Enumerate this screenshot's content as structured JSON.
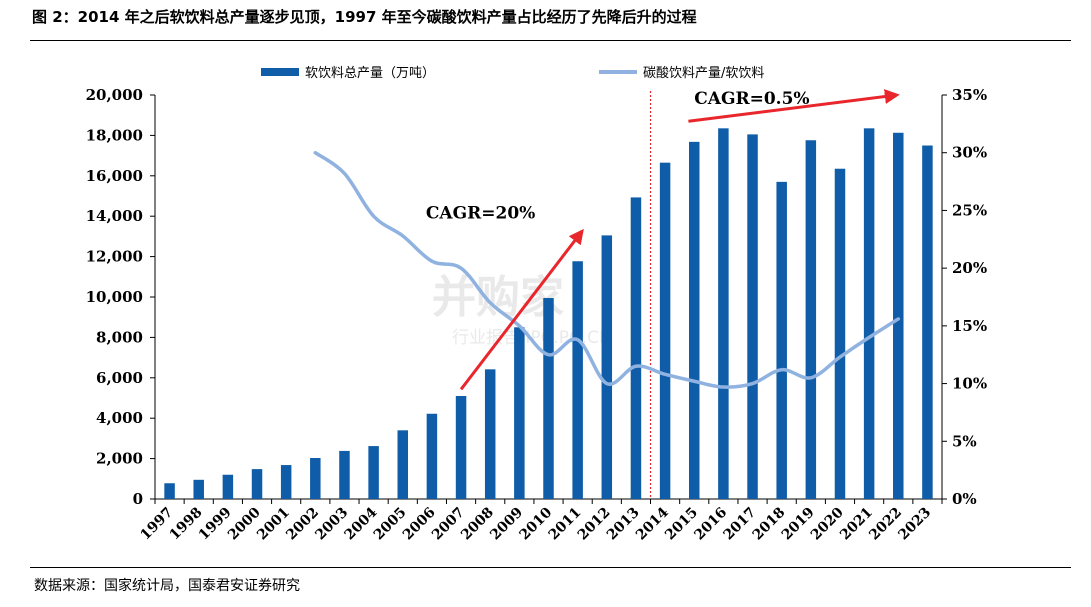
{
  "figure": {
    "title": "图 2：2014 年之后软饮料总产量逐步见顶，1997 年至今碳酸饮料产量占比经历了先降后升的过程",
    "source": "数据来源：国家统计局，国泰君安证券研究"
  },
  "watermark": {
    "main": "并购家",
    "sub": "行业报告 IPO.PO.CN"
  },
  "chart_data": {
    "type": "bar",
    "categories": [
      "1997",
      "1998",
      "1999",
      "2000",
      "2001",
      "2002",
      "2003",
      "2004",
      "2005",
      "2006",
      "2007",
      "2008",
      "2009",
      "2010",
      "2011",
      "2012",
      "2013",
      "2014",
      "2015",
      "2016",
      "2017",
      "2018",
      "2019",
      "2020",
      "2021",
      "2022",
      "2023"
    ],
    "series": [
      {
        "name": "软饮料总产量（万吨）",
        "type": "bar",
        "axis": "left",
        "color": "#0F5DA8",
        "values": [
          780,
          950,
          1200,
          1480,
          1680,
          2030,
          2380,
          2620,
          3400,
          4220,
          5100,
          6420,
          8500,
          9950,
          11770,
          13050,
          14930,
          16650,
          17680,
          18350,
          18050,
          15700,
          17760,
          16350,
          18350,
          18130,
          17500
        ]
      },
      {
        "name": "碳酸饮料产量/软饮料",
        "type": "line",
        "axis": "right",
        "color": "#8FB2E0",
        "values": [
          null,
          null,
          null,
          null,
          null,
          30.0,
          28.2,
          24.5,
          22.8,
          20.6,
          20.0,
          17.0,
          15.0,
          12.5,
          13.8,
          10.0,
          11.5,
          10.8,
          10.2,
          9.7,
          10.0,
          11.2,
          10.5,
          12.3,
          14.0,
          15.6,
          null
        ]
      }
    ],
    "ylim_left": [
      0,
      20000
    ],
    "yticks_left": [
      "0",
      "2,000",
      "4,000",
      "6,000",
      "8,000",
      "10,000",
      "12,000",
      "14,000",
      "16,000",
      "18,000",
      "20,000"
    ],
    "ylim_right": [
      0,
      35
    ],
    "yticks_right": [
      "0%",
      "5%",
      "10%",
      "15%",
      "20%",
      "25%",
      "30%",
      "35%"
    ],
    "divider_after": "2013",
    "annotations": [
      {
        "text": "CAGR=20%",
        "arrow_from": [
          "2007",
          9.5
        ],
        "arrow_to": [
          "2011",
          23.2
        ]
      },
      {
        "text": "CAGR=0.5%",
        "arrow_from": [
          "2015",
          18700
        ],
        "arrow_to": [
          "2022",
          20000
        ]
      }
    ],
    "legend": "top",
    "grid": false
  }
}
